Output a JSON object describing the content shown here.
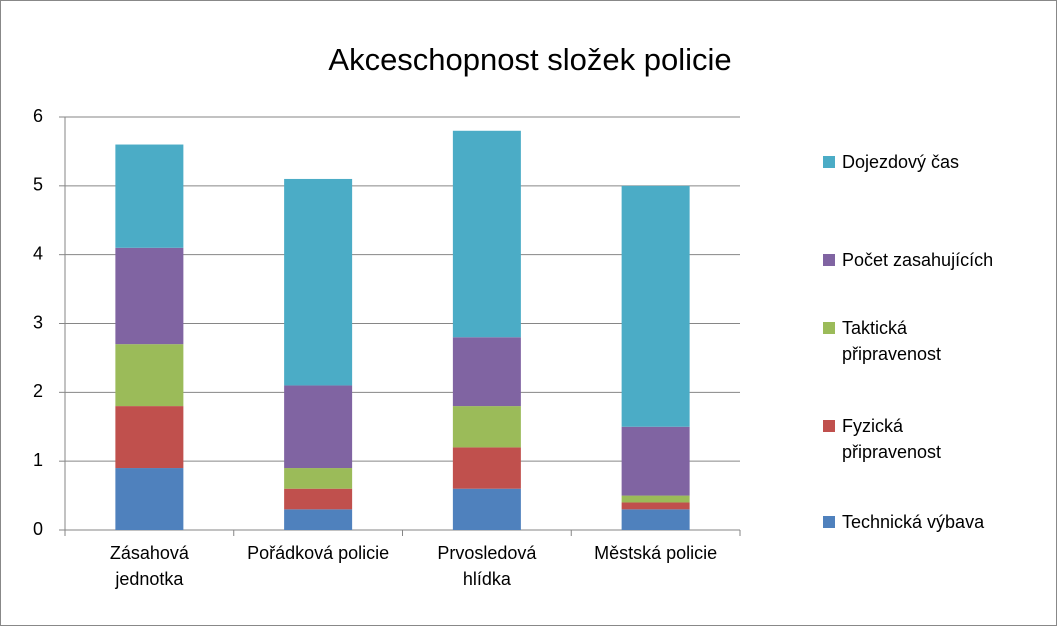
{
  "chart_data": {
    "type": "stacked-bar",
    "title": "Akceschopnost složek policie",
    "categories": [
      "Zásahová jednotka",
      "Pořádková policie",
      "Prvosledová hlídka",
      "Městská policie"
    ],
    "series": [
      {
        "name": "Technická výbava",
        "color": "#4f81bd",
        "values": [
          0.9,
          0.3,
          0.6,
          0.3
        ]
      },
      {
        "name": "Fyzická připravenost",
        "color": "#c0504d",
        "values": [
          0.9,
          0.3,
          0.6,
          0.1
        ]
      },
      {
        "name": "Taktická připravenost",
        "color": "#9bbb59",
        "values": [
          0.9,
          0.3,
          0.6,
          0.1
        ]
      },
      {
        "name": "Počet zasahujících",
        "color": "#8064a2",
        "values": [
          1.4,
          1.2,
          1.0,
          1.0
        ]
      },
      {
        "name": "Dojezdový čas",
        "color": "#4bacc6",
        "values": [
          1.5,
          3.0,
          3.0,
          3.5
        ]
      }
    ],
    "ylim": [
      0,
      6
    ],
    "yticks": [
      0,
      1,
      2,
      3,
      4,
      5,
      6
    ],
    "grid": true,
    "legend": "right"
  }
}
